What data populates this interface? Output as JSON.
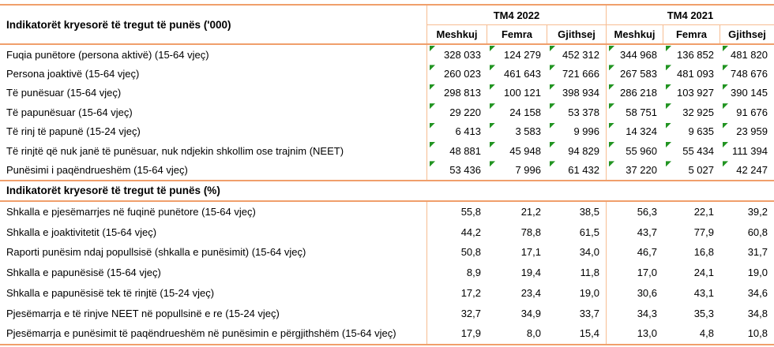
{
  "table": {
    "title_000": "Indikatorët kryesorë të tregut të punës ('000)",
    "title_pct": "Indikatorët kryesorë të tregut të punës (%)",
    "col_groups": [
      {
        "label": "TM4 2022"
      },
      {
        "label": "TM4 2021"
      }
    ],
    "sub_headers": [
      "Meshkuj",
      "Femra",
      "Gjithsej",
      "Meshkuj",
      "Femra",
      "Gjithsej"
    ],
    "rows_000": [
      {
        "label": "Fuqia punëtore (persona aktivë) (15-64 vjeç)",
        "values": [
          "328 033",
          "124 279",
          "452 312",
          "344 968",
          "136 852",
          "481 820"
        ]
      },
      {
        "label": "Persona joaktivë (15-64 vjeç)",
        "values": [
          "260 023",
          "461 643",
          "721 666",
          "267 583",
          "481 093",
          "748 676"
        ]
      },
      {
        "label": "Të punësuar (15-64 vjeç)",
        "values": [
          "298 813",
          "100 121",
          "398 934",
          "286 218",
          "103 927",
          "390 145"
        ]
      },
      {
        "label": "Të papunësuar (15-64 vjeç)",
        "values": [
          "29 220",
          "24 158",
          "53 378",
          "58 751",
          "32 925",
          "91 676"
        ]
      },
      {
        "label": "Të rinj të papunë (15-24 vjeç)",
        "values": [
          "6 413",
          "3 583",
          "9 996",
          "14 324",
          "9 635",
          "23 959"
        ]
      },
      {
        "label": "Të rinjtë që nuk janë të punësuar, nuk ndjekin shkollim ose trajnim (NEET)",
        "values": [
          "48 881",
          "45 948",
          "94 829",
          "55 960",
          "55 434",
          "111 394"
        ]
      },
      {
        "label": "Punësimi i paqëndrueshëm (15-64 vjeç)",
        "values": [
          "53 436",
          "7 996",
          "61 432",
          "37 220",
          "5 027",
          "42 247"
        ]
      }
    ],
    "rows_pct": [
      {
        "label": "Shkalla e pjesëmarrjes në fuqinë punëtore (15-64 vjeç)",
        "values": [
          "55,8",
          "21,2",
          "38,5",
          "56,3",
          "22,1",
          "39,2"
        ]
      },
      {
        "label": "Shkalla e joaktivitetit (15-64 vjeç)",
        "values": [
          "44,2",
          "78,8",
          "61,5",
          "43,7",
          "77,9",
          "60,8"
        ]
      },
      {
        "label": "Raporti punësim ndaj popullsisë (shkalla e punësimit) (15-64 vjeç)",
        "values": [
          "50,8",
          "17,1",
          "34,0",
          "46,7",
          "16,8",
          "31,7"
        ]
      },
      {
        "label": "Shkalla e papunësisë (15-64 vjeç)",
        "values": [
          "8,9",
          "19,4",
          "11,8",
          "17,0",
          "24,1",
          "19,0"
        ]
      },
      {
        "label": "Shkalla e papunësisë tek të rinjtë (15-24 vjeç)",
        "values": [
          "17,2",
          "23,4",
          "19,0",
          "30,6",
          "43,1",
          "34,6"
        ]
      },
      {
        "label": "Pjesëmarrja e të rinjve NEET në popullsinë e re (15-24 vjeç)",
        "values": [
          "32,7",
          "34,9",
          "33,7",
          "34,3",
          "35,3",
          "34,8"
        ]
      },
      {
        "label": "Pjesëmarrja e punësimit të paqëndrueshëm në punësimin e përgjithshëm (15-64 vjeç)",
        "values": [
          "17,9",
          "8,0",
          "15,4",
          "13,0",
          "4,8",
          "10,8"
        ]
      }
    ],
    "icons": {
      "cell_marker": "excel-green-corner-triangle"
    },
    "colors": {
      "rule_heavy": "#f09f6b",
      "rule_light": "#f6bd92",
      "marker_green": "#219421",
      "text": "#000000",
      "background": "#ffffff"
    }
  }
}
